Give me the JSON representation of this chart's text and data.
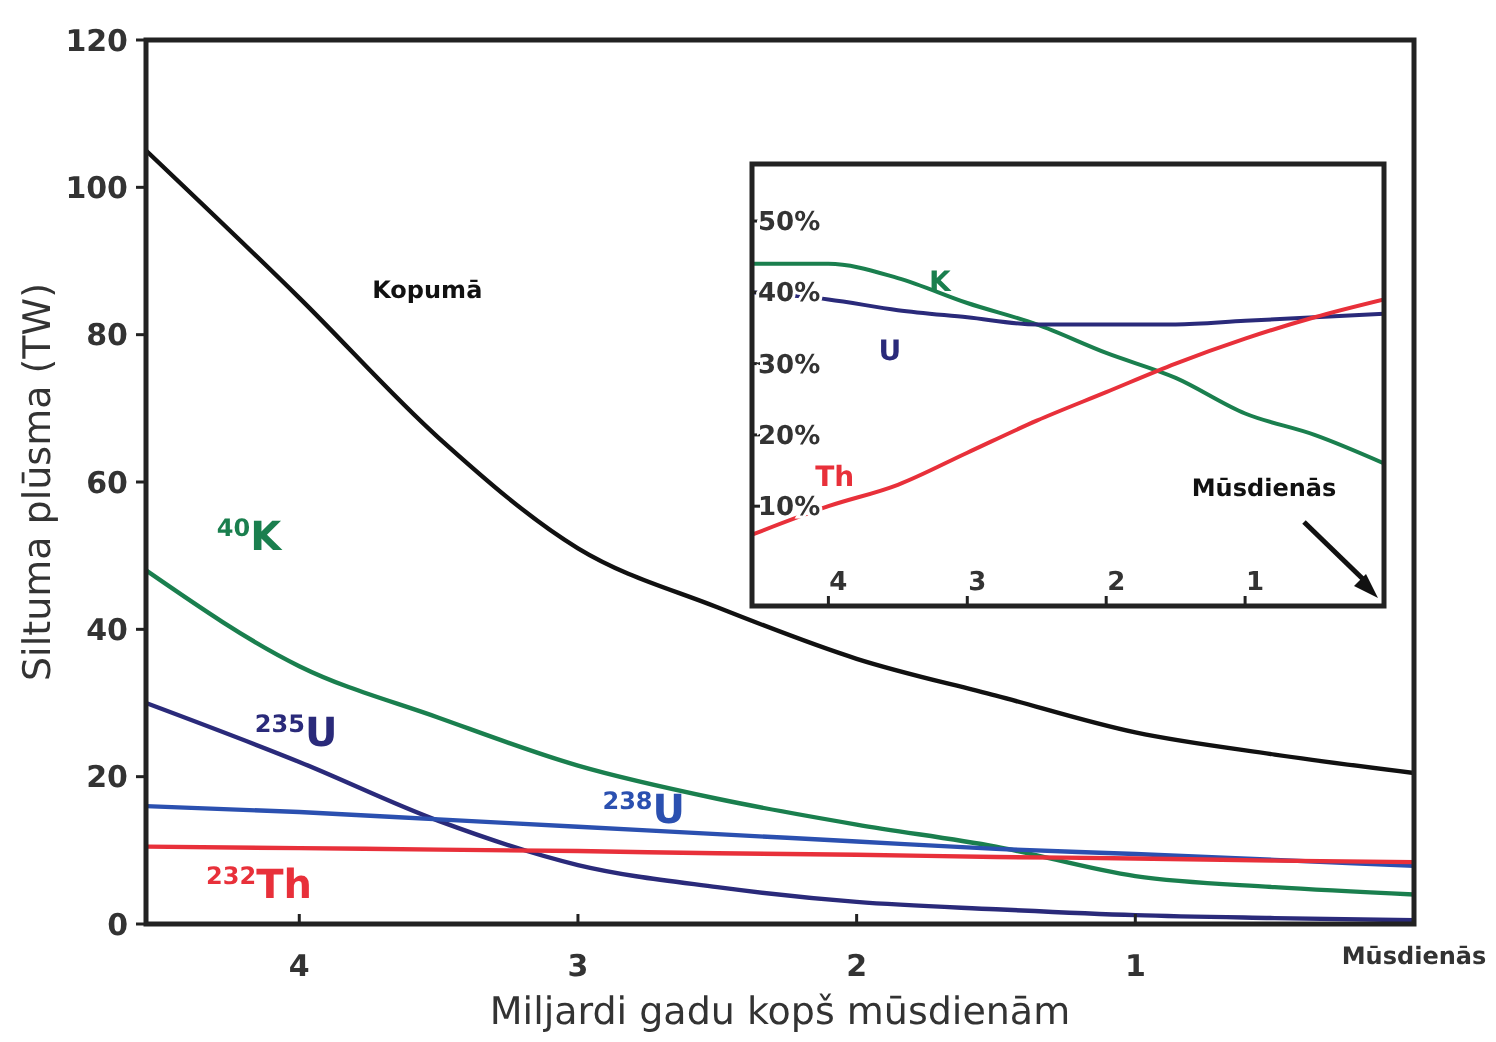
{
  "chart_data": [
    {
      "type": "line",
      "xlabel": "Miljardi gadu kopš mūsdienām",
      "ylabel": "Siltuma plūsma (TW)",
      "x": [
        4.55,
        4,
        3.5,
        3,
        2.5,
        2,
        1.5,
        1,
        0.5,
        0
      ],
      "xlim": [
        4.55,
        0
      ],
      "xticks": [
        4,
        3,
        2,
        1,
        {
          "value": 0,
          "label": "Mūsdienās"
        }
      ],
      "ylim": [
        0,
        120
      ],
      "yticks": [
        0,
        20,
        40,
        60,
        80,
        100,
        120
      ],
      "grid": false,
      "marker": "none",
      "line_style": "solid",
      "series": [
        {
          "name": "Kopumā",
          "color": "#111111",
          "values": [
            105,
            85,
            66,
            51,
            43,
            36,
            31,
            26,
            23,
            20.5
          ]
        },
        {
          "name": "$^{40}$K",
          "color": "#1a7f4e",
          "values": [
            48,
            35,
            28,
            21.5,
            17,
            13.5,
            10.5,
            6.5,
            5,
            4
          ]
        },
        {
          "name": "$^{235}$U",
          "color": "#2a2a7a",
          "values": [
            30,
            22,
            14,
            8,
            5,
            3,
            2,
            1.2,
            0.8,
            0.5
          ]
        },
        {
          "name": "$^{238}$U",
          "color": "#2b50b0",
          "values": [
            16,
            15.2,
            14.2,
            13.2,
            12.2,
            11.2,
            10.2,
            9.5,
            8.7,
            7.9
          ]
        },
        {
          "name": "$^{232}$Th",
          "color": "#e8303a",
          "values": [
            10.5,
            10.3,
            10.1,
            9.9,
            9.6,
            9.4,
            9.1,
            8.9,
            8.6,
            8.4
          ]
        }
      ]
    },
    {
      "type": "line",
      "x": [
        4.55,
        4,
        3.5,
        3,
        2.5,
        2,
        1.5,
        1,
        0.5,
        0
      ],
      "xlim": [
        4.55,
        0
      ],
      "xticks": [
        4,
        3,
        2,
        1
      ],
      "ylim": [
        -4,
        58
      ],
      "yticks": [
        {
          "value": 10,
          "label": "10%"
        },
        {
          "value": 20,
          "label": "20%"
        },
        {
          "value": 30,
          "label": "30%"
        },
        {
          "value": 40,
          "label": "40%"
        },
        {
          "value": 50,
          "label": "50%"
        }
      ],
      "grid": false,
      "marker": "none",
      "line_style": "solid",
      "annotations": [
        "Mūsdienās"
      ],
      "series": [
        {
          "name": "K",
          "color": "#1a7f4e",
          "values": [
            44,
            44,
            42,
            38.5,
            35.5,
            31.5,
            28,
            23,
            20,
            16
          ]
        },
        {
          "name": "U",
          "color": "#2a2a7a",
          "values": [
            40,
            39,
            37.5,
            36.5,
            35.5,
            35.5,
            35.5,
            36,
            36.5,
            37
          ]
        },
        {
          "name": "Th",
          "color": "#e8303a",
          "values": [
            6,
            10,
            13,
            17.5,
            22,
            26,
            30,
            33.5,
            36.5,
            39
          ]
        }
      ]
    }
  ]
}
